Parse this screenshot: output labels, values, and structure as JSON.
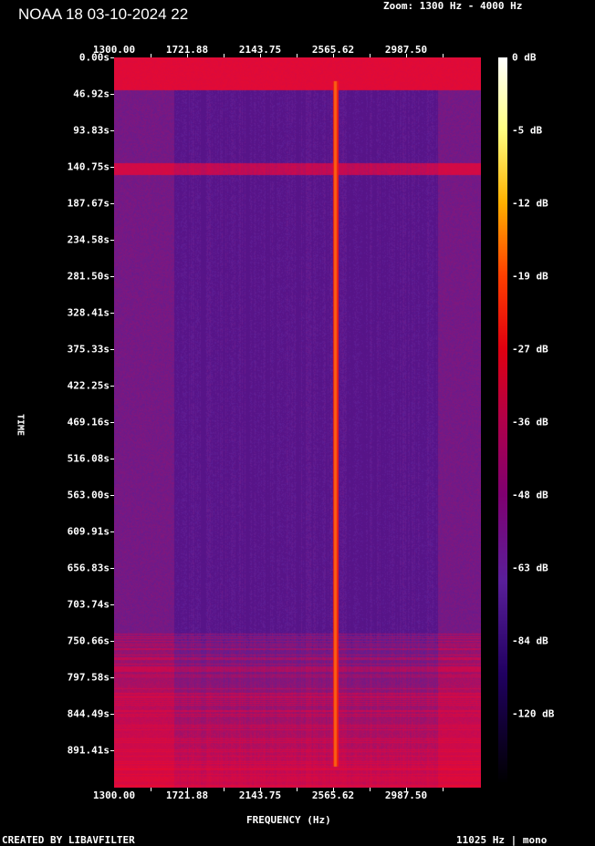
{
  "header": {
    "title": "NOAA 18 03-10-2024 22",
    "zoom": "Zoom: 1300 Hz - 4000 Hz"
  },
  "footer": {
    "created_by": "CREATED BY LIBAVFILTER",
    "sample_info": "11025 Hz | mono"
  },
  "chart_data": {
    "type": "heatmap",
    "xlabel": "FREQUENCY (Hz)",
    "ylabel": "TIME",
    "x_ticks": [
      "1300.00",
      "1721.88",
      "2143.75",
      "2565.62",
      "2987.50"
    ],
    "y_ticks": [
      "0.00s",
      "46.92s",
      "93.83s",
      "140.75s",
      "187.67s",
      "234.58s",
      "281.50s",
      "328.41s",
      "375.33s",
      "422.25s",
      "469.16s",
      "516.08s",
      "563.00s",
      "609.91s",
      "656.83s",
      "703.74s",
      "750.66s",
      "797.58s",
      "844.49s",
      "891.41s"
    ],
    "xlim": [
      1300,
      4000
    ],
    "colorbar_ticks": [
      "0 dB",
      "-5 dB",
      "-12 dB",
      "-19 dB",
      "-27 dB",
      "-36 dB",
      "-48 dB",
      "-63 dB",
      "-84 dB",
      "-120 dB"
    ],
    "colormap": [
      "#000000",
      "#1a0050",
      "#5a1f8a",
      "#c0003a",
      "#ff2000",
      "#ff9900",
      "#ffff40",
      "#ffffff"
    ],
    "features": {
      "carrier_frequency_hz": 2400,
      "carrier_start_s": 30,
      "carrier_end_s": 910
    }
  }
}
